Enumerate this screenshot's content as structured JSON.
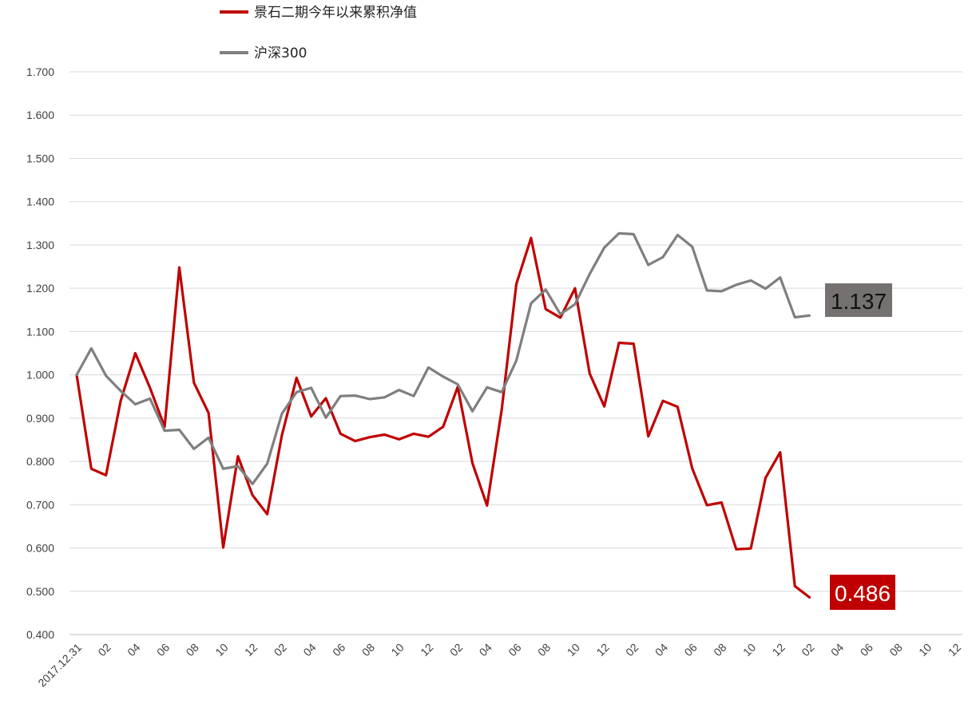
{
  "chart_data": {
    "type": "line",
    "title": "",
    "xlabel": "",
    "ylabel": "",
    "ylim": [
      0.4,
      1.7
    ],
    "yticks": [
      "1.700",
      "1.600",
      "1.500",
      "1.400",
      "1.300",
      "1.200",
      "1.100",
      "1.000",
      "0.900",
      "0.800",
      "0.700",
      "0.600",
      "0.500",
      "0.400"
    ],
    "xticks": [
      "2017.12.31",
      "02",
      "04",
      "06",
      "08",
      "10",
      "12",
      "02",
      "04",
      "06",
      "08",
      "10",
      "12",
      "02",
      "04",
      "06",
      "08",
      "10",
      "12",
      "02",
      "04",
      "06",
      "08",
      "10",
      "12",
      "02",
      "04",
      "06",
      "08",
      "10",
      "12"
    ],
    "grid": true,
    "legend": "top",
    "series": [
      {
        "name": "景石二期今年以来累积净值",
        "color": "#c00000",
        "values": [
          1.0,
          0.783,
          0.768,
          0.94,
          1.05,
          0.97,
          0.88,
          1.248,
          0.982,
          0.912,
          0.601,
          0.812,
          0.722,
          0.678,
          0.86,
          0.993,
          0.904,
          0.946,
          0.864,
          0.847,
          0.856,
          0.862,
          0.851,
          0.864,
          0.857,
          0.88,
          0.972,
          0.796,
          0.698,
          0.92,
          1.21,
          1.316,
          1.152,
          1.132,
          1.2,
          1.003,
          0.927,
          1.074,
          1.072,
          0.858,
          0.94,
          0.926,
          0.784,
          0.699,
          0.705,
          0.597,
          0.599,
          0.762,
          0.821,
          0.512,
          0.486
        ]
      },
      {
        "name": "沪深300",
        "color": "#7f7f7f",
        "values": [
          1.0,
          1.061,
          0.998,
          0.963,
          0.932,
          0.945,
          0.871,
          0.873,
          0.829,
          0.855,
          0.783,
          0.789,
          0.748,
          0.795,
          0.91,
          0.96,
          0.97,
          0.901,
          0.951,
          0.952,
          0.944,
          0.948,
          0.965,
          0.951,
          1.017,
          0.996,
          0.978,
          0.916,
          0.971,
          0.96,
          1.033,
          1.165,
          1.197,
          1.14,
          1.163,
          1.233,
          1.294,
          1.327,
          1.325,
          1.254,
          1.272,
          1.323,
          1.296,
          1.195,
          1.193,
          1.208,
          1.218,
          1.199,
          1.225,
          1.133,
          1.137
        ]
      }
    ],
    "annotations": [
      {
        "text": "1.137",
        "series": 1,
        "color": "#767171"
      },
      {
        "text": "0.486",
        "series": 0,
        "color": "#c00000"
      }
    ]
  }
}
